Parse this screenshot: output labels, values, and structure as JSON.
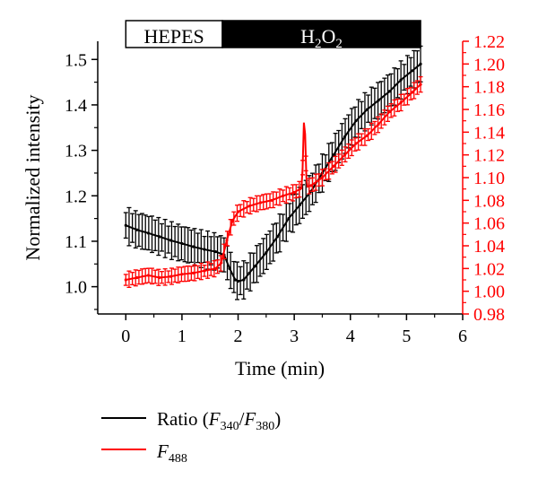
{
  "chart_data": {
    "type": "line",
    "title": "",
    "xlabel": "Time (min)",
    "ylabel_left": "Normalized intensity",
    "ylabel_right": "",
    "xlim": [
      -0.5,
      6
    ],
    "ylim_left": [
      0.94,
      1.54
    ],
    "ylim_right": [
      0.98,
      1.22
    ],
    "x_ticks": [
      "0",
      "1",
      "2",
      "3",
      "4",
      "5",
      "6"
    ],
    "y_ticks_left": [
      "1.0",
      "1.1",
      "1.2",
      "1.3",
      "1.4",
      "1.5"
    ],
    "y_ticks_right": [
      "0.98",
      "1.00",
      "1.02",
      "1.04",
      "1.06",
      "1.08",
      "1.10",
      "1.12",
      "1.14",
      "1.16",
      "1.18",
      "1.20",
      "1.22"
    ],
    "grid": false,
    "legend_placement": "bottom",
    "colors": {
      "ratio": "#000000",
      "f488": "#ff0000"
    },
    "condition_bar": [
      {
        "label": "HEPES",
        "x_start": 0,
        "x_end": 1.72,
        "fill": "#ffffff",
        "text_color": "#000000"
      },
      {
        "label": "H2O2",
        "x_start": 1.72,
        "x_end": 5.25,
        "fill": "#000000",
        "text_color": "#ffffff"
      }
    ],
    "series": [
      {
        "name": "Ratio (F340/F380)",
        "axis": "left",
        "color": "#000000",
        "error": 0.035,
        "points": [
          [
            0.0,
            1.135
          ],
          [
            0.2,
            1.125
          ],
          [
            0.4,
            1.118
          ],
          [
            0.6,
            1.11
          ],
          [
            0.8,
            1.102
          ],
          [
            1.0,
            1.095
          ],
          [
            1.2,
            1.088
          ],
          [
            1.4,
            1.082
          ],
          [
            1.6,
            1.077
          ],
          [
            1.75,
            1.07
          ],
          [
            1.85,
            1.04
          ],
          [
            1.95,
            1.015
          ],
          [
            2.0,
            1.012
          ],
          [
            2.1,
            1.015
          ],
          [
            2.2,
            1.03
          ],
          [
            2.3,
            1.045
          ],
          [
            2.5,
            1.075
          ],
          [
            2.7,
            1.11
          ],
          [
            2.9,
            1.15
          ],
          [
            3.1,
            1.18
          ],
          [
            3.3,
            1.21
          ],
          [
            3.5,
            1.25
          ],
          [
            3.7,
            1.29
          ],
          [
            3.9,
            1.33
          ],
          [
            4.1,
            1.365
          ],
          [
            4.3,
            1.39
          ],
          [
            4.5,
            1.41
          ],
          [
            4.7,
            1.43
          ],
          [
            4.9,
            1.455
          ],
          [
            5.1,
            1.475
          ],
          [
            5.25,
            1.49
          ]
        ]
      },
      {
        "name": "F488",
        "axis": "right",
        "color": "#ff0000",
        "error": 0.006,
        "spike": {
          "x": 3.18,
          "peak": 1.163
        },
        "points": [
          [
            0.0,
            1.01
          ],
          [
            0.2,
            1.012
          ],
          [
            0.4,
            1.014
          ],
          [
            0.6,
            1.012
          ],
          [
            0.8,
            1.013
          ],
          [
            1.0,
            1.015
          ],
          [
            1.2,
            1.016
          ],
          [
            1.4,
            1.018
          ],
          [
            1.6,
            1.02
          ],
          [
            1.7,
            1.025
          ],
          [
            1.8,
            1.045
          ],
          [
            1.9,
            1.062
          ],
          [
            2.0,
            1.07
          ],
          [
            2.2,
            1.075
          ],
          [
            2.4,
            1.078
          ],
          [
            2.6,
            1.08
          ],
          [
            2.8,
            1.084
          ],
          [
            3.0,
            1.087
          ],
          [
            3.1,
            1.09
          ],
          [
            3.3,
            1.093
          ],
          [
            3.5,
            1.1
          ],
          [
            3.7,
            1.11
          ],
          [
            3.9,
            1.12
          ],
          [
            4.1,
            1.13
          ],
          [
            4.3,
            1.137
          ],
          [
            4.5,
            1.147
          ],
          [
            4.7,
            1.158
          ],
          [
            4.9,
            1.166
          ],
          [
            5.1,
            1.175
          ],
          [
            5.25,
            1.182
          ]
        ]
      }
    ],
    "legend": [
      {
        "key": "ratio",
        "label_prefix": "Ratio (",
        "var1": "F",
        "sub1": "340",
        "slash": "/",
        "var2": "F",
        "sub2": "380",
        "label_suffix": ")"
      },
      {
        "key": "f488",
        "var1": "F",
        "sub1": "488"
      }
    ]
  }
}
